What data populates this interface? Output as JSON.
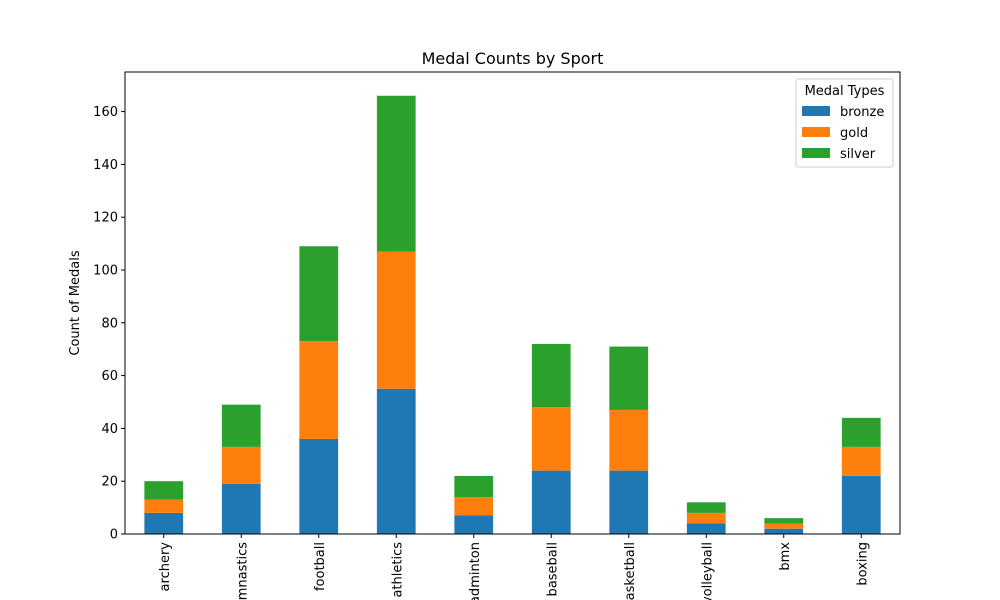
{
  "chart_data": {
    "type": "bar",
    "stacked": true,
    "title": "Medal Counts by Sport",
    "xlabel": "",
    "ylabel": "Count of Medals",
    "ylim": [
      0,
      175
    ],
    "yticks": [
      0,
      20,
      40,
      60,
      80,
      100,
      120,
      140,
      160
    ],
    "categories": [
      "archery",
      "gymnastics",
      "football",
      "athletics",
      "badminton",
      "baseball",
      "basketball",
      "volleyball",
      "bmx",
      "boxing"
    ],
    "series": [
      {
        "name": "bronze",
        "color": "#1f77b4",
        "values": [
          8,
          19,
          36,
          55,
          7,
          24,
          24,
          4,
          2,
          22
        ]
      },
      {
        "name": "gold",
        "color": "#ff7f0e",
        "values": [
          5,
          14,
          37,
          52,
          7,
          24,
          23,
          4,
          2,
          11
        ]
      },
      {
        "name": "silver",
        "color": "#2ca02c",
        "values": [
          7,
          16,
          36,
          59,
          8,
          24,
          24,
          4,
          2,
          11
        ]
      }
    ],
    "legend": {
      "title": "Medal Types",
      "position": "top-right"
    },
    "grid": false
  }
}
